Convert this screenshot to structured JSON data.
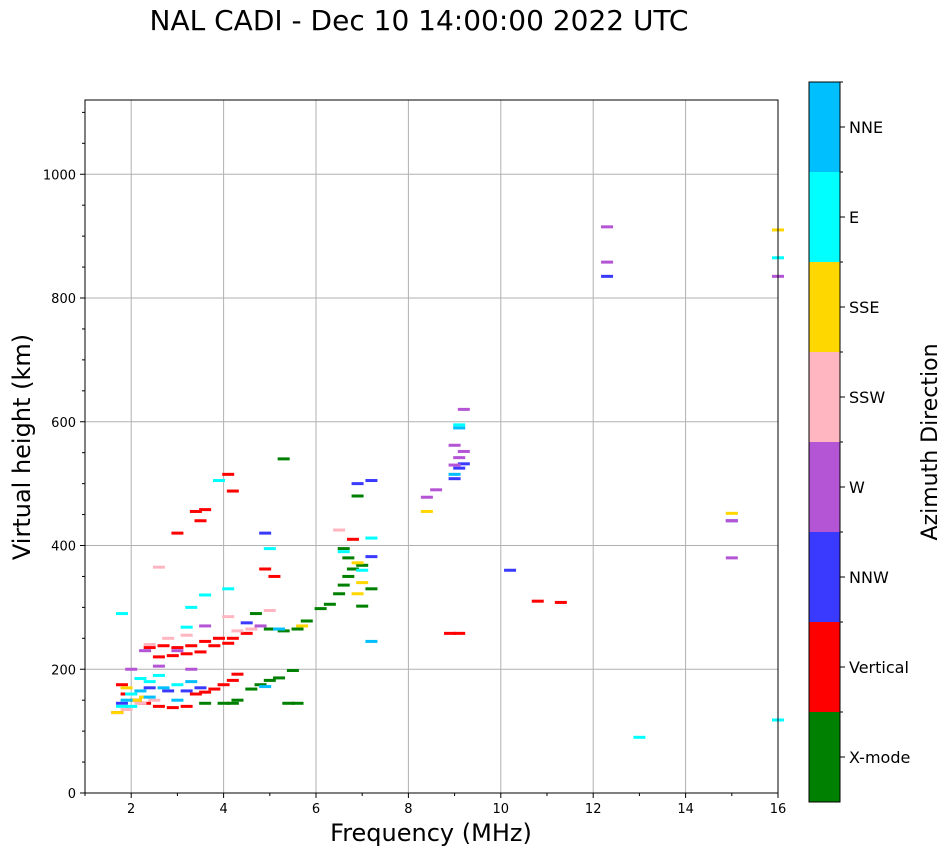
{
  "title": "NAL CADI - Dec 10 14:00:00 2022 UTC",
  "colors": {
    "grid": "#b0b0b0",
    "X-mode": "#008000",
    "Vertical": "#ff0000",
    "NNW": "#3a3aff",
    "W": "#b455d6",
    "SSW": "#ffb6c1",
    "SSE": "#ffd700",
    "E": "#00ffff",
    "NNE": "#00bfff"
  },
  "chart_data": {
    "type": "scatter",
    "xlabel": "Frequency (MHz)",
    "ylabel": "Virtual height (km)",
    "xlim": [
      1,
      16
    ],
    "ylim": [
      0,
      1120
    ],
    "xticks": [
      2,
      4,
      6,
      8,
      10,
      12,
      14,
      16
    ],
    "xtick_labels": [
      "2",
      "4",
      "6",
      "8",
      "10",
      "12",
      "14",
      "16"
    ],
    "yticks": [
      0,
      200,
      400,
      600,
      800,
      1000
    ],
    "ytick_labels": [
      "0",
      "200",
      "400",
      "600",
      "800",
      "1000"
    ],
    "grid": true,
    "colorbar": {
      "label": "Azimuth Direction",
      "categories": [
        "X-mode",
        "Vertical",
        "NNW",
        "W",
        "SSW",
        "SSE",
        "E",
        "NNE"
      ]
    },
    "series": [
      {
        "name": "X-mode",
        "points": [
          [
            3.6,
            145
          ],
          [
            4.0,
            145
          ],
          [
            4.2,
            145
          ],
          [
            4.3,
            150
          ],
          [
            4.6,
            168
          ],
          [
            4.8,
            175
          ],
          [
            5.0,
            182
          ],
          [
            5.2,
            186
          ],
          [
            5.4,
            145
          ],
          [
            5.6,
            145
          ],
          [
            5.5,
            198
          ],
          [
            4.7,
            290
          ],
          [
            5.0,
            265
          ],
          [
            5.3,
            262
          ],
          [
            5.6,
            265
          ],
          [
            5.8,
            278
          ],
          [
            6.1,
            298
          ],
          [
            6.3,
            305
          ],
          [
            6.5,
            322
          ],
          [
            6.6,
            336
          ],
          [
            6.7,
            350
          ],
          [
            6.8,
            362
          ],
          [
            7.0,
            368
          ],
          [
            7.2,
            330
          ],
          [
            7.0,
            302
          ],
          [
            6.9,
            480
          ],
          [
            5.3,
            540
          ],
          [
            6.6,
            395
          ],
          [
            6.7,
            380
          ]
        ]
      },
      {
        "name": "Vertical",
        "points": [
          [
            1.7,
            130
          ],
          [
            1.8,
            175
          ],
          [
            1.9,
            160
          ],
          [
            2.1,
            150
          ],
          [
            2.3,
            145
          ],
          [
            2.6,
            140
          ],
          [
            2.9,
            138
          ],
          [
            3.2,
            140
          ],
          [
            3.4,
            160
          ],
          [
            3.6,
            163
          ],
          [
            3.8,
            168
          ],
          [
            4.0,
            175
          ],
          [
            4.2,
            182
          ],
          [
            4.3,
            192
          ],
          [
            2.4,
            235
          ],
          [
            2.7,
            238
          ],
          [
            3.0,
            235
          ],
          [
            3.3,
            238
          ],
          [
            3.6,
            245
          ],
          [
            3.9,
            250
          ],
          [
            4.2,
            250
          ],
          [
            4.5,
            258
          ],
          [
            2.6,
            220
          ],
          [
            2.9,
            222
          ],
          [
            3.2,
            225
          ],
          [
            3.5,
            228
          ],
          [
            3.8,
            238
          ],
          [
            4.1,
            242
          ],
          [
            3.5,
            440
          ],
          [
            3.6,
            458
          ],
          [
            3.4,
            455
          ],
          [
            4.1,
            515
          ],
          [
            4.2,
            488
          ],
          [
            3.0,
            420
          ],
          [
            4.9,
            362
          ],
          [
            5.1,
            350
          ],
          [
            6.8,
            410
          ],
          [
            10.8,
            310
          ],
          [
            11.3,
            308
          ],
          [
            8.9,
            258
          ],
          [
            9.1,
            258
          ]
        ]
      },
      {
        "name": "NNW",
        "points": [
          [
            1.8,
            145
          ],
          [
            2.0,
            160
          ],
          [
            2.4,
            170
          ],
          [
            2.8,
            165
          ],
          [
            3.2,
            165
          ],
          [
            3.5,
            170
          ],
          [
            4.5,
            275
          ],
          [
            4.9,
            420
          ],
          [
            6.9,
            500
          ],
          [
            7.2,
            505
          ],
          [
            7.2,
            382
          ],
          [
            9.0,
            508
          ],
          [
            9.1,
            525
          ],
          [
            9.2,
            532
          ],
          [
            10.2,
            360
          ],
          [
            12.3,
            835
          ],
          [
            15.0,
            440
          ]
        ]
      },
      {
        "name": "W",
        "points": [
          [
            2.0,
            200
          ],
          [
            2.3,
            230
          ],
          [
            2.6,
            205
          ],
          [
            3.0,
            230
          ],
          [
            3.3,
            200
          ],
          [
            3.6,
            270
          ],
          [
            4.8,
            270
          ],
          [
            8.4,
            478
          ],
          [
            8.6,
            490
          ],
          [
            9.0,
            562
          ],
          [
            9.2,
            552
          ],
          [
            9.1,
            542
          ],
          [
            9.0,
            530
          ],
          [
            9.2,
            620
          ],
          [
            12.3,
            858
          ],
          [
            12.3,
            915
          ],
          [
            15.0,
            380
          ],
          [
            15.0,
            440
          ],
          [
            16.0,
            835
          ]
        ]
      },
      {
        "name": "SSW",
        "points": [
          [
            1.9,
            135
          ],
          [
            2.2,
            145
          ],
          [
            2.5,
            150
          ],
          [
            2.4,
            240
          ],
          [
            2.8,
            250
          ],
          [
            3.2,
            255
          ],
          [
            4.3,
            262
          ],
          [
            4.6,
            265
          ],
          [
            2.6,
            365
          ],
          [
            5.0,
            295
          ],
          [
            6.5,
            425
          ],
          [
            4.1,
            285
          ]
        ]
      },
      {
        "name": "SSE",
        "points": [
          [
            1.7,
            130
          ],
          [
            1.9,
            170
          ],
          [
            2.1,
            150
          ],
          [
            2.3,
            155
          ],
          [
            6.9,
            322
          ],
          [
            7.0,
            340
          ],
          [
            6.9,
            372
          ],
          [
            5.7,
            270
          ],
          [
            8.4,
            455
          ],
          [
            15.0,
            452
          ],
          [
            16.0,
            910
          ]
        ]
      },
      {
        "name": "E",
        "points": [
          [
            1.8,
            140
          ],
          [
            2.0,
            160
          ],
          [
            2.2,
            185
          ],
          [
            2.6,
            190
          ],
          [
            3.0,
            175
          ],
          [
            3.2,
            268
          ],
          [
            3.3,
            300
          ],
          [
            3.6,
            320
          ],
          [
            3.9,
            505
          ],
          [
            4.1,
            330
          ],
          [
            5.0,
            395
          ],
          [
            2.0,
            140
          ],
          [
            2.4,
            180
          ],
          [
            6.6,
            390
          ],
          [
            7.0,
            360
          ],
          [
            7.2,
            412
          ],
          [
            13.0,
            90
          ],
          [
            16.0,
            118
          ],
          [
            16.0,
            865
          ],
          [
            9.1,
            595
          ],
          [
            1.8,
            290
          ]
        ]
      },
      {
        "name": "NNE",
        "points": [
          [
            1.9,
            150
          ],
          [
            2.2,
            165
          ],
          [
            2.4,
            155
          ],
          [
            2.7,
            170
          ],
          [
            3.0,
            150
          ],
          [
            3.3,
            180
          ],
          [
            4.9,
            172
          ],
          [
            5.2,
            265
          ],
          [
            7.2,
            245
          ],
          [
            9.1,
            590
          ],
          [
            9.0,
            515
          ]
        ]
      }
    ]
  }
}
